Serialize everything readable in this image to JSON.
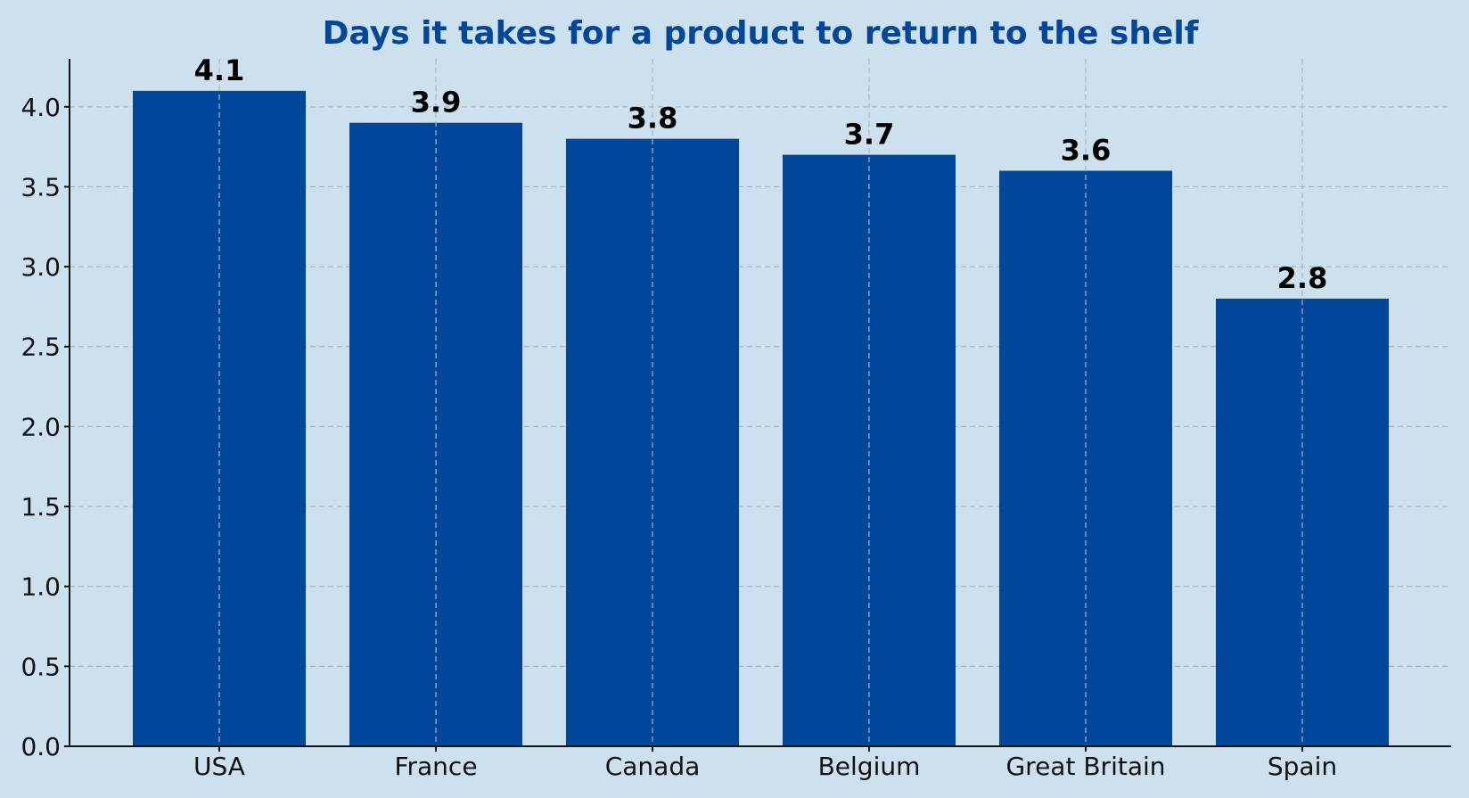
{
  "chart_data": {
    "type": "bar",
    "title": "Days it takes for a product to return to the shelf",
    "xlabel": "",
    "ylabel": "",
    "categories": [
      "USA",
      "France",
      "Canada",
      "Belgium",
      "Great Britain",
      "Spain"
    ],
    "values": [
      4.1,
      3.9,
      3.8,
      3.7,
      3.6,
      2.8
    ],
    "value_labels": [
      "4.1",
      "3.9",
      "3.8",
      "3.7",
      "3.6",
      "2.8"
    ],
    "yticks": [
      0.0,
      0.5,
      1.0,
      1.5,
      2.0,
      2.5,
      3.0,
      3.5,
      4.0
    ],
    "ytick_labels": [
      "0.0",
      "0.5",
      "1.0",
      "1.5",
      "2.0",
      "2.5",
      "3.0",
      "3.5",
      "4.0"
    ],
    "ylim": [
      0,
      4.3
    ],
    "grid": true,
    "legend": "none"
  },
  "colors": {
    "background": "#cde0ee",
    "bar": "#00469a",
    "title": "#00469a"
  }
}
